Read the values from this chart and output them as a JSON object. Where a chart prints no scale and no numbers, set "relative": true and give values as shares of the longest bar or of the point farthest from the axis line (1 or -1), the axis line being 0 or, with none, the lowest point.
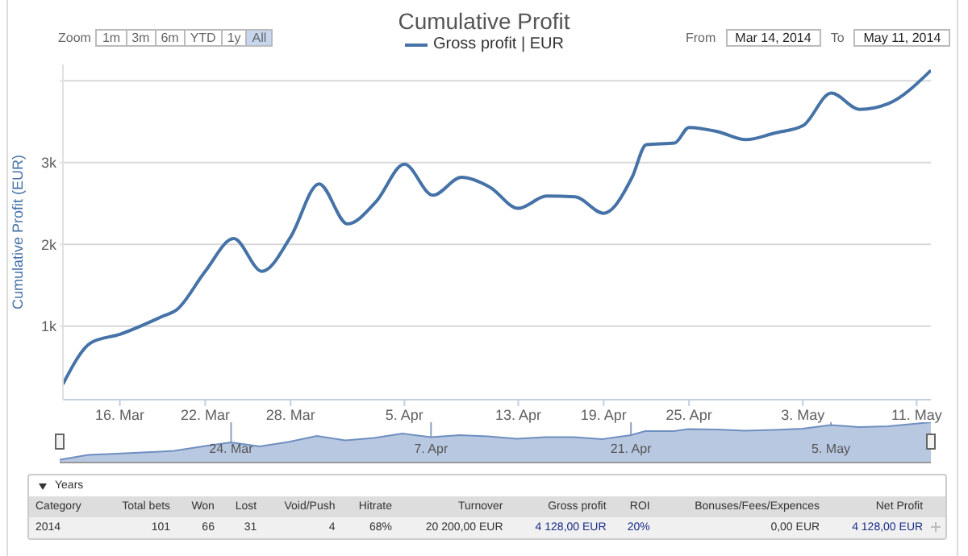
{
  "chart_data": [
    {
      "type": "line",
      "title": "Cumulative Profit",
      "ylabel": "Cumulative Profit (EUR)",
      "x": [
        "2014-03-12",
        "2014-03-14",
        "2014-03-16",
        "2014-03-19",
        "2014-03-20",
        "2014-03-22",
        "2014-03-24",
        "2014-03-26",
        "2014-03-28",
        "2014-03-30",
        "2014-04-01",
        "2014-04-03",
        "2014-04-05",
        "2014-04-07",
        "2014-04-09",
        "2014-04-11",
        "2014-04-13",
        "2014-04-15",
        "2014-04-17",
        "2014-04-19",
        "2014-04-21",
        "2014-04-22",
        "2014-04-24",
        "2014-04-25",
        "2014-04-27",
        "2014-04-29",
        "2014-05-01",
        "2014-05-03",
        "2014-05-05",
        "2014-05-07",
        "2014-05-09",
        "2014-05-12"
      ],
      "series": [
        {
          "name": "Gross profit | EUR",
          "color": "#4572a7",
          "values": [
            290,
            800,
            900,
            1120,
            1200,
            1670,
            2070,
            1670,
            2090,
            2740,
            2250,
            2520,
            2980,
            2600,
            2820,
            2700,
            2440,
            2590,
            2580,
            2380,
            2820,
            3220,
            3240,
            3430,
            3380,
            3280,
            3360,
            3450,
            3850,
            3650,
            3720,
            4128
          ]
        }
      ],
      "xlim": [
        "2014-03-12",
        "2014-05-12"
      ],
      "xticks": [
        {
          "value": "2014-03-16",
          "label": "16. Mar"
        },
        {
          "value": "2014-03-22",
          "label": "22. Mar"
        },
        {
          "value": "2014-03-28",
          "label": "28. Mar"
        },
        {
          "value": "2014-04-05",
          "label": "5. Apr"
        },
        {
          "value": "2014-04-13",
          "label": "13. Apr"
        },
        {
          "value": "2014-04-19",
          "label": "19. Apr"
        },
        {
          "value": "2014-04-25",
          "label": "25. Apr"
        },
        {
          "value": "2014-05-03",
          "label": "3. May"
        },
        {
          "value": "2014-05-11",
          "label": "11. May"
        }
      ],
      "ylim": [
        100,
        4200
      ],
      "yticks": [
        {
          "value": 1000,
          "label": "1k"
        },
        {
          "value": 2000,
          "label": "2k"
        },
        {
          "value": 3000,
          "label": "3k"
        },
        {
          "value": 4000,
          "label": null
        }
      ],
      "grid": "y",
      "legend": "top",
      "marker": "none",
      "line_style": "solid",
      "annotations": [
        "Zoom",
        "1m",
        "3m",
        "6m",
        "YTD",
        "1y",
        "All",
        "From",
        "Mar 14, 2014",
        "To",
        "May 11, 2014",
        "Years",
        "Category",
        "Total bets",
        "Won",
        "Lost",
        "Void/Push",
        "Hitrate",
        "Turnover",
        "Gross profit",
        "ROI",
        "Bonuses/Fees/Expences",
        "Net Profit",
        "2014",
        "101",
        "66",
        "31",
        "4",
        "68%",
        "20 200,00 EUR",
        "4 128,00 EUR",
        "20%",
        "0,00 EUR",
        "4 128,00 EUR"
      ]
    },
    {
      "type": "area",
      "x": [
        "2014-03-12",
        "2014-03-14",
        "2014-03-16",
        "2014-03-19",
        "2014-03-20",
        "2014-03-22",
        "2014-03-24",
        "2014-03-26",
        "2014-03-28",
        "2014-03-30",
        "2014-04-01",
        "2014-04-03",
        "2014-04-05",
        "2014-04-07",
        "2014-04-09",
        "2014-04-11",
        "2014-04-13",
        "2014-04-15",
        "2014-04-17",
        "2014-04-19",
        "2014-04-21",
        "2014-04-22",
        "2014-04-24",
        "2014-04-25",
        "2014-04-27",
        "2014-04-29",
        "2014-05-01",
        "2014-05-03",
        "2014-05-05",
        "2014-05-07",
        "2014-05-09",
        "2014-05-12"
      ],
      "series": [
        {
          "color": "#6f8fc0",
          "values": [
            0.07,
            0.19,
            0.22,
            0.27,
            0.29,
            0.4,
            0.5,
            0.4,
            0.51,
            0.66,
            0.55,
            0.61,
            0.72,
            0.63,
            0.68,
            0.65,
            0.59,
            0.63,
            0.63,
            0.58,
            0.68,
            0.78,
            0.78,
            0.83,
            0.82,
            0.79,
            0.81,
            0.84,
            0.93,
            0.88,
            0.9,
            1
          ]
        }
      ],
      "xlim": [
        "2014-03-12",
        "2014-05-12"
      ],
      "xticks": [
        {
          "value": "2014-03-24",
          "label": "24. Mar"
        },
        {
          "value": "2014-04-07",
          "label": "7. Apr"
        },
        {
          "value": "2014-04-21",
          "label": "21. Apr"
        },
        {
          "value": "2014-05-05",
          "label": "5. May"
        }
      ],
      "relative": true,
      "grid": "x",
      "tick_labels": "x"
    }
  ]
}
